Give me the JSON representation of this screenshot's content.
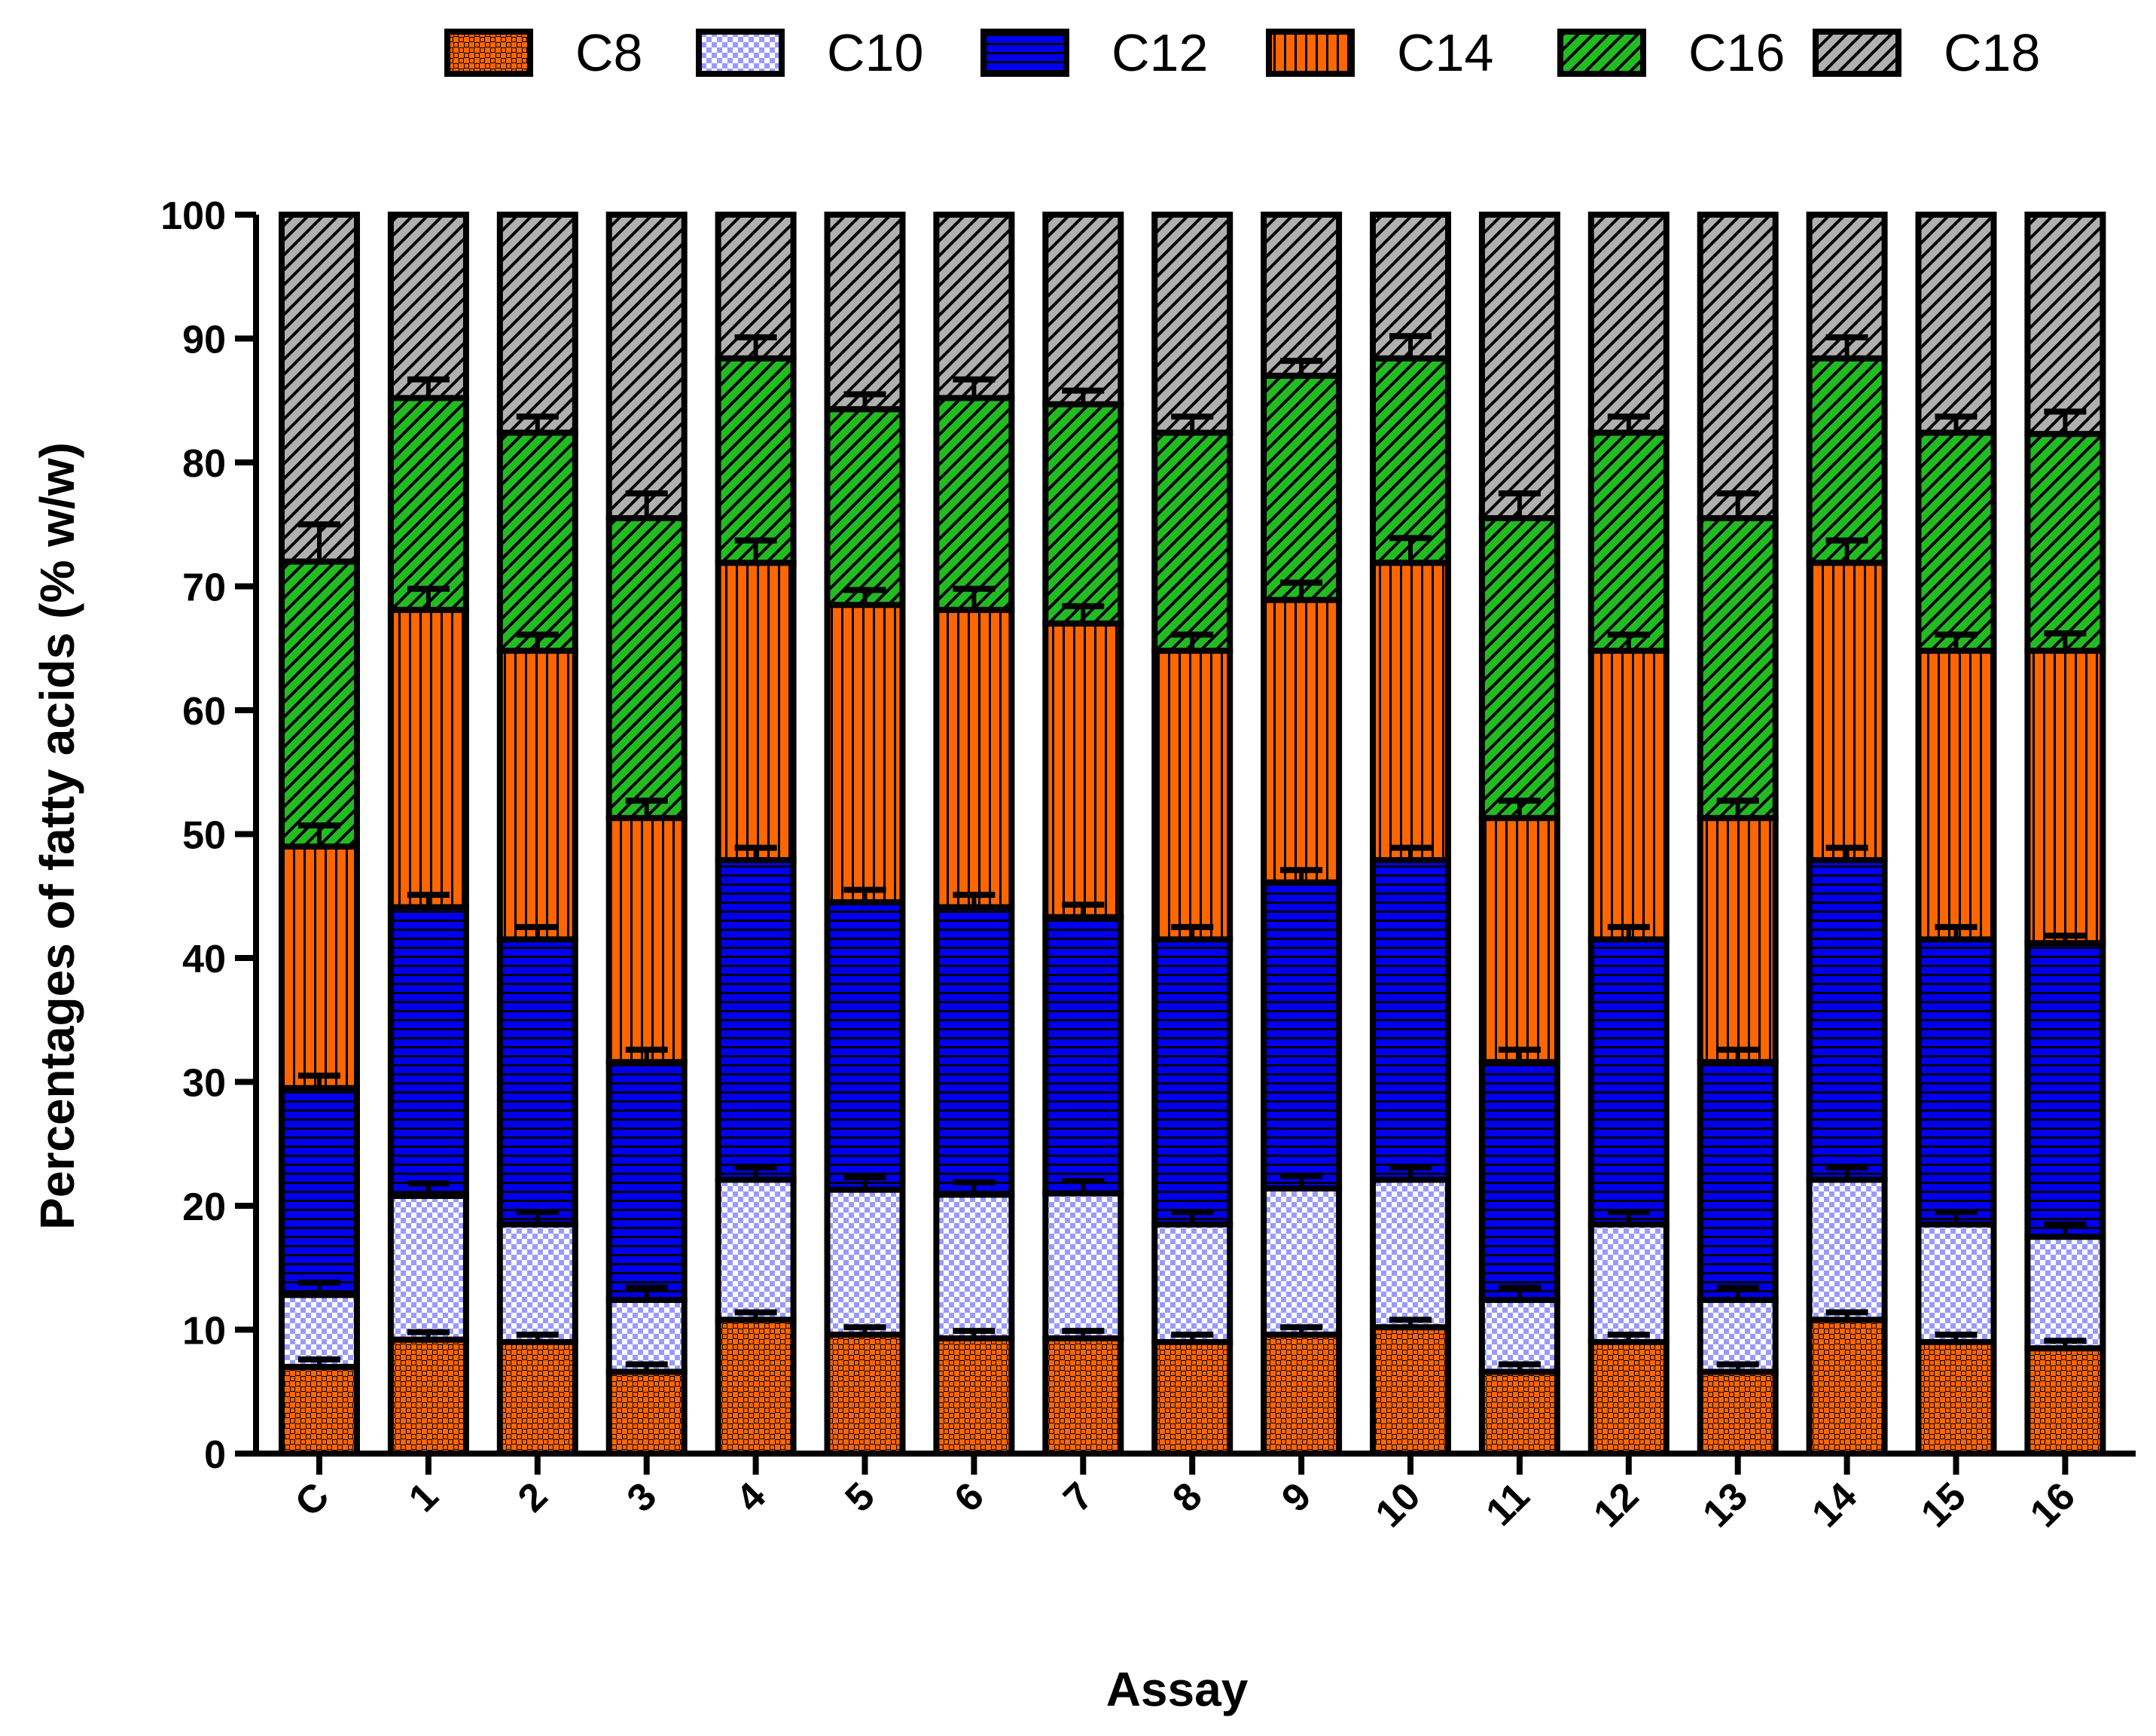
{
  "chart_data": {
    "type": "bar",
    "stacked": true,
    "title": "",
    "xlabel": "Assay",
    "ylabel": "Percentages of fatty acids (% w/w)",
    "ylim": [
      0,
      100
    ],
    "yticks": [
      "0",
      "10",
      "20",
      "30",
      "40",
      "50",
      "60",
      "70",
      "80",
      "90",
      "100"
    ],
    "legend_position": "top",
    "categories": [
      "C",
      "1",
      "2",
      "3",
      "4",
      "5",
      "6",
      "7",
      "8",
      "9",
      "10",
      "11",
      "12",
      "13",
      "14",
      "15",
      "16"
    ],
    "series": [
      {
        "name": "C8",
        "color": "#ff6600",
        "pattern": "checker",
        "values": [
          7.0,
          9.2,
          9.0,
          6.6,
          10.8,
          9.6,
          9.3,
          9.3,
          9.0,
          9.6,
          10.2,
          6.6,
          9.0,
          6.6,
          10.8,
          9.0,
          8.5
        ]
      },
      {
        "name": "C10",
        "color": "#9999ff",
        "pattern": "checker",
        "values": [
          5.8,
          11.6,
          9.5,
          5.8,
          11.3,
          11.7,
          11.6,
          11.7,
          9.5,
          11.8,
          11.9,
          5.8,
          9.5,
          5.8,
          11.3,
          9.5,
          9.0
        ]
      },
      {
        "name": "C12",
        "color": "#0000ee",
        "pattern": "hstripes",
        "values": [
          16.7,
          23.3,
          23.0,
          19.2,
          25.8,
          23.2,
          23.2,
          22.3,
          23.0,
          24.7,
          25.8,
          19.2,
          23.0,
          19.2,
          25.8,
          23.0,
          23.7
        ]
      },
      {
        "name": "C14",
        "color": "#ff6600",
        "pattern": "vstripes",
        "values": [
          19.5,
          24.0,
          23.3,
          19.7,
          24.0,
          24.0,
          24.0,
          23.7,
          23.3,
          22.8,
          24.0,
          19.7,
          23.3,
          19.7,
          24.0,
          23.3,
          23.6
        ]
      },
      {
        "name": "C16",
        "color": "#22bb22",
        "pattern": "diag",
        "values": [
          23.0,
          17.1,
          17.6,
          24.2,
          16.5,
          15.8,
          17.1,
          17.7,
          17.6,
          18.1,
          16.5,
          24.2,
          17.6,
          24.2,
          16.5,
          17.6,
          17.5
        ]
      },
      {
        "name": "C18",
        "color": "#b0b0b0",
        "pattern": "diag",
        "values": [
          28.0,
          14.8,
          17.6,
          24.5,
          11.6,
          15.7,
          14.8,
          15.3,
          17.6,
          13.0,
          11.6,
          24.5,
          17.6,
          24.5,
          11.6,
          17.6,
          17.7
        ]
      }
    ],
    "errors": [
      [
        0.6,
        0.6,
        0.6,
        0.6,
        0.6,
        0.6,
        0.6,
        0.6,
        0.6,
        0.6,
        0.6,
        0.6,
        0.6,
        0.6,
        0.6,
        0.6,
        0.6
      ],
      [
        1.0,
        1.0,
        1.0,
        1.0,
        1.0,
        1.0,
        1.0,
        1.0,
        1.0,
        1.0,
        1.0,
        1.0,
        1.0,
        1.0,
        1.0,
        1.0,
        1.0
      ],
      [
        1.0,
        1.0,
        1.0,
        1.0,
        1.0,
        1.0,
        1.0,
        1.0,
        1.0,
        1.0,
        1.0,
        1.0,
        1.0,
        1.0,
        1.0,
        1.0,
        0.6
      ],
      [
        1.7,
        1.7,
        1.3,
        1.4,
        1.8,
        1.2,
        1.7,
        1.4,
        1.3,
        1.4,
        2.0,
        1.4,
        1.3,
        1.4,
        1.8,
        1.3,
        1.4
      ],
      [
        3.0,
        1.5,
        1.3,
        2.0,
        1.7,
        1.2,
        1.5,
        1.1,
        1.3,
        1.2,
        1.8,
        2.0,
        1.3,
        2.0,
        1.7,
        1.3,
        1.8
      ]
    ]
  }
}
